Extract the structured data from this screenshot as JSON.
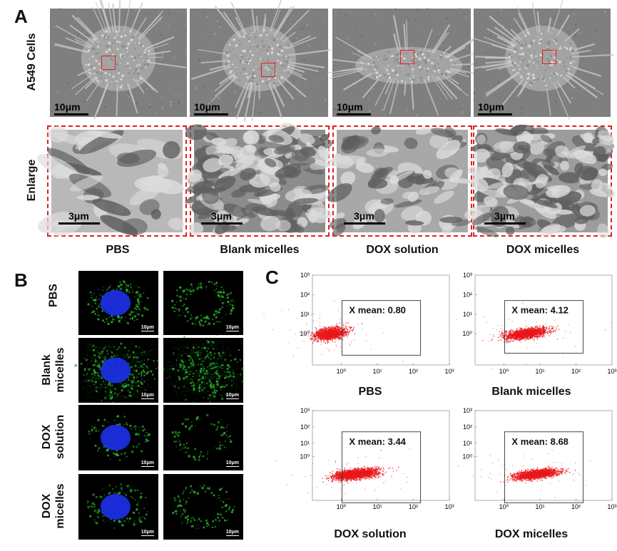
{
  "panel_labels": {
    "a": "A",
    "b": "B",
    "c": "C"
  },
  "panel_a": {
    "row_labels": {
      "cells": "A549  Cells",
      "enlarge": "Enlarge"
    },
    "cell_scale": "10μm",
    "enlarge_scale": "3μm",
    "groups": [
      "PBS",
      "Blank micelles",
      "DOX solution",
      "DOX micelles"
    ]
  },
  "panel_b": {
    "row_labels": [
      {
        "line1": "PBS",
        "line2": ""
      },
      {
        "line1": "Blank",
        "line2": "micelles"
      },
      {
        "line1": "DOX",
        "line2": "solution"
      },
      {
        "line1": "DOX",
        "line2": "micelles"
      }
    ],
    "scale": "10μm"
  },
  "panel_c": {
    "plots": [
      {
        "caption": "PBS",
        "gate_label": "X mean: 0.80",
        "x_mean": 0.8
      },
      {
        "caption": "Blank micelles",
        "gate_label": "X mean: 4.12",
        "x_mean": 4.12
      },
      {
        "caption": "DOX solution",
        "gate_label": "X mean: 3.44",
        "x_mean": 3.44
      },
      {
        "caption": "DOX micelles",
        "gate_label": "X mean: 8.68",
        "x_mean": 8.68
      }
    ],
    "y_ticks": [
      "10³",
      "10²",
      "10¹",
      "10⁰"
    ],
    "x_ticks": [
      "10⁰",
      "10¹",
      "10²",
      "10³"
    ],
    "dot_color": "#e8181c"
  },
  "colors": {
    "highlight": "#e02020",
    "nucleus": "#1a2ee0",
    "membrane": "#2aa82a"
  }
}
